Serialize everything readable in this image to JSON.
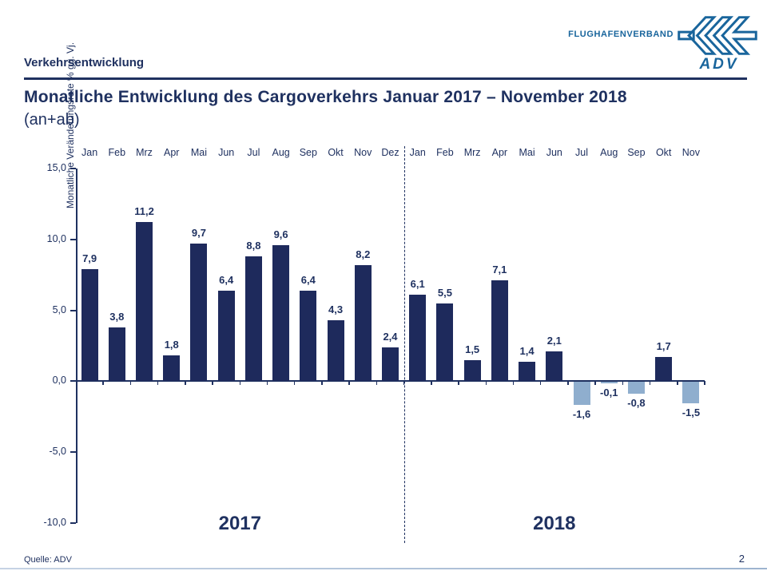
{
  "header": {
    "kicker": "Verkehrsentwicklung",
    "title_line1": "Monatliche Entwicklung des Cargoverkehrs Januar 2017 – November 2018",
    "title_line2": "(an+ab)"
  },
  "logo": {
    "org_text": "FLUGHAFENVERBAND",
    "acronym": "ADV",
    "color": "#19659C"
  },
  "footer": {
    "source": "Quelle: ADV",
    "page_number": "2"
  },
  "colors": {
    "navy_text": "#1F3160",
    "bar_positive": "#1E2A5C",
    "bar_negative": "#8FAECE",
    "logo_blue": "#19659C"
  },
  "chart_data": {
    "type": "bar",
    "title": "Monatliche Entwicklung des Cargoverkehrs Januar 2017 – November 2018 (an+ab)",
    "ylabel": "Monatliche Veränderungsrate % gg. Vj.",
    "ylim": [
      -10,
      15
    ],
    "ytick_values": [
      15,
      10,
      5,
      0,
      -5,
      -10
    ],
    "ytick_labels": [
      "15,0",
      "10,0",
      "5,0",
      "0,0",
      "-5,0",
      "-10,0"
    ],
    "value_decimal_separator": ",",
    "grid": false,
    "legend": false,
    "groups": [
      {
        "label": "2017",
        "categories": [
          "Jan",
          "Feb",
          "Mrz",
          "Apr",
          "Mai",
          "Jun",
          "Jul",
          "Aug",
          "Sep",
          "Okt",
          "Nov",
          "Dez"
        ],
        "values": [
          7.9,
          3.8,
          11.2,
          1.8,
          9.7,
          6.4,
          8.8,
          9.6,
          6.4,
          4.3,
          8.2,
          2.4
        ]
      },
      {
        "label": "2018",
        "categories": [
          "Jan",
          "Feb",
          "Mrz",
          "Apr",
          "Mai",
          "Jun",
          "Jul",
          "Aug",
          "Sep",
          "Okt",
          "Nov"
        ],
        "values": [
          6.1,
          5.5,
          1.5,
          7.1,
          1.4,
          2.1,
          -1.6,
          -0.1,
          -0.8,
          1.7,
          -1.5
        ]
      }
    ]
  }
}
